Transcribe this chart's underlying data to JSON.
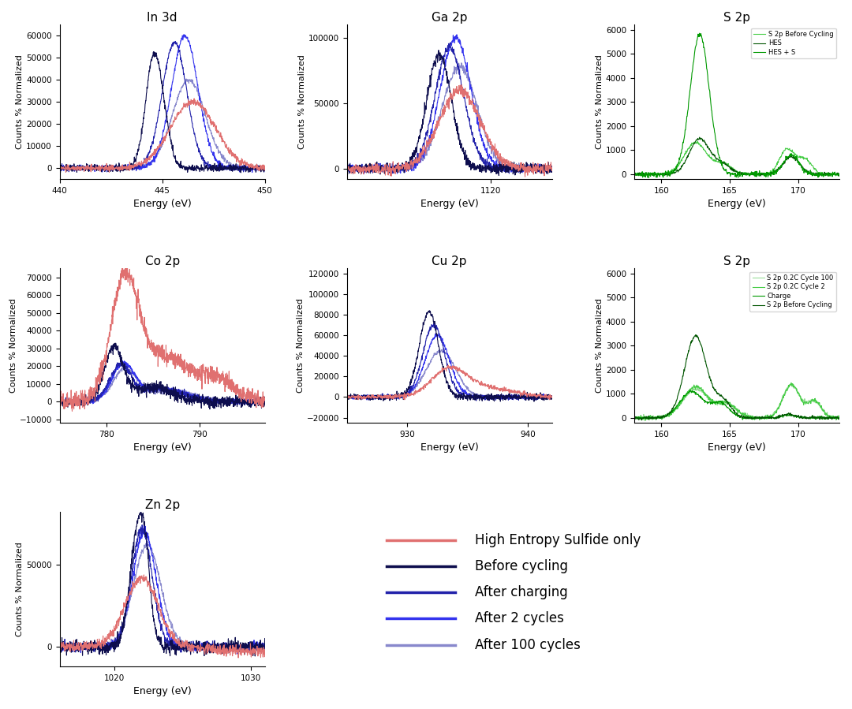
{
  "panels": {
    "In3d": {
      "title": "In 3d",
      "xlabel": "Energy (eV)",
      "ylabel": "Counts % Normalized",
      "xlim": [
        440,
        450
      ],
      "ylim": [
        -5000,
        65000
      ],
      "yticks": [
        0,
        10000,
        20000,
        30000,
        40000,
        50000,
        60000
      ],
      "xticks": [
        440,
        445,
        450
      ]
    },
    "Ga2p": {
      "title": "Ga 2p",
      "xlabel": "Energy (eV)",
      "ylabel": "Counts % Normalized",
      "xlim": [
        1113,
        1123
      ],
      "ylim": [
        -8000,
        110000
      ],
      "yticks": [
        0,
        50000,
        100000
      ],
      "xticks": [
        1120
      ]
    },
    "S2p_top": {
      "title": "S 2p",
      "xlabel": "Energy (eV)",
      "ylabel": "Counts % Normalized",
      "xlim": [
        158,
        173
      ],
      "ylim": [
        -200,
        6200
      ],
      "yticks": [
        0,
        1000,
        2000,
        3000,
        4000,
        5000,
        6000
      ],
      "xticks": [
        160,
        165,
        170
      ]
    },
    "Co2p": {
      "title": "Co 2p",
      "xlabel": "Energy (eV)",
      "ylabel": "Counts % Normalized",
      "xlim": [
        775,
        797
      ],
      "ylim": [
        -12000,
        75000
      ],
      "yticks": [
        -10000,
        0,
        10000,
        20000,
        30000,
        40000,
        50000,
        60000,
        70000
      ],
      "xticks": [
        780,
        790
      ]
    },
    "Cu2p": {
      "title": "Cu 2p",
      "xlabel": "Energy (eV)",
      "ylabel": "Counts % Normalized",
      "xlim": [
        925,
        942
      ],
      "ylim": [
        -25000,
        125000
      ],
      "yticks": [
        -20000,
        0,
        20000,
        40000,
        60000,
        80000,
        100000,
        120000
      ],
      "xticks": [
        930,
        940
      ]
    },
    "S2p_bot": {
      "title": "S 2p",
      "xlabel": "Energy (eV)",
      "ylabel": "Counts % Normalized",
      "xlim": [
        158,
        173
      ],
      "ylim": [
        -200,
        6200
      ],
      "yticks": [
        0,
        1000,
        2000,
        3000,
        4000,
        5000,
        6000
      ],
      "xticks": [
        160,
        165,
        170
      ]
    },
    "Zn2p": {
      "title": "Zn 2p",
      "xlabel": "Energy (eV)",
      "ylabel": "Counts % Normalized",
      "xlim": [
        1016,
        1031
      ],
      "ylim": [
        -12000,
        82000
      ],
      "yticks": [
        0,
        50000
      ],
      "xticks": [
        1020,
        1030
      ]
    }
  },
  "colors": {
    "red": "#e07070",
    "dark_navy": "#0d0d4d",
    "medium_blue": "#2222aa",
    "blue": "#3333ee",
    "light_blue": "#8888cc",
    "dark_green": "#005500",
    "medium_green": "#009900",
    "light_green": "#44cc44",
    "pale_green": "#99dd99"
  },
  "legend": {
    "red_label": "High Entropy Sulfide only",
    "dark_navy_label": "Before cycling",
    "medium_blue_label": "After charging",
    "blue_label": "After 2 cycles",
    "light_blue_label": "After 100 cycles"
  }
}
